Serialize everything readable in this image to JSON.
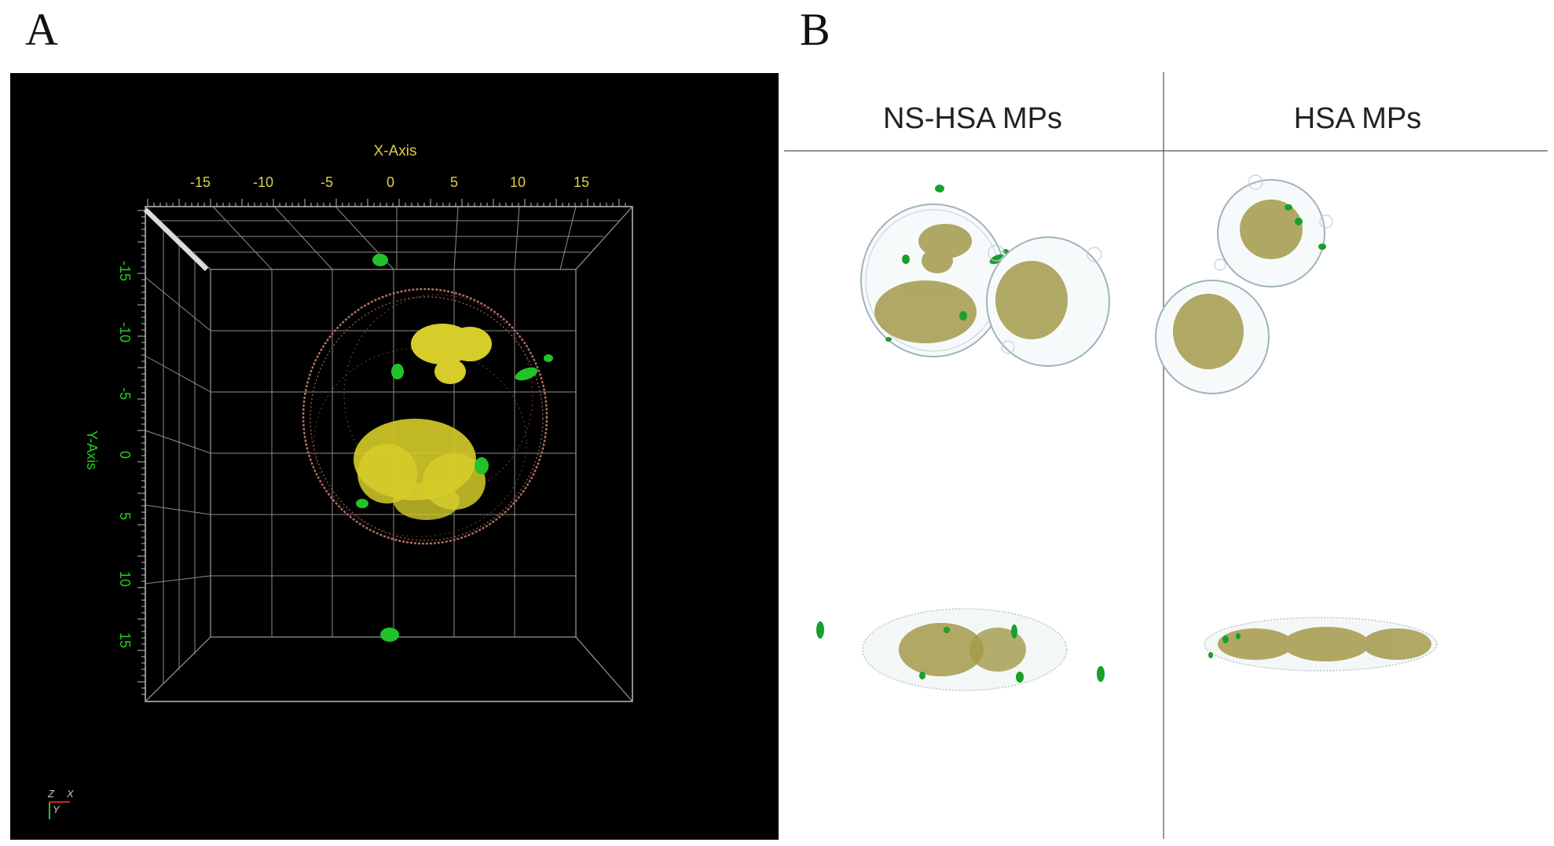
{
  "figure": {
    "panel_a_label": "A",
    "panel_b_label": "B"
  },
  "panel_a": {
    "x_axis_title": "X-Axis",
    "y_axis_title": "Y-Axis",
    "x_ticks": [
      "-15",
      "-10",
      "-5",
      "0",
      "5",
      "10",
      "15"
    ],
    "y_ticks": [
      "-15",
      "-10",
      "-5",
      "0",
      "5",
      "10",
      "15"
    ],
    "axis_x_color": "#e0d040",
    "axis_y_color": "#1fd11f",
    "triad": {
      "z": "Z",
      "x": "X",
      "y": "Y"
    },
    "colors": {
      "membrane": "#b0705a",
      "core": "#d6cc2a",
      "particles": "#22c22a",
      "grid": "#bdbdbd"
    }
  },
  "panel_b": {
    "columns": [
      "NS-HSA MPs",
      "HSA MPs"
    ],
    "colors": {
      "outline": "#9fb3bd",
      "core": "#a39a4a",
      "particles": "#1a9f2a"
    }
  }
}
